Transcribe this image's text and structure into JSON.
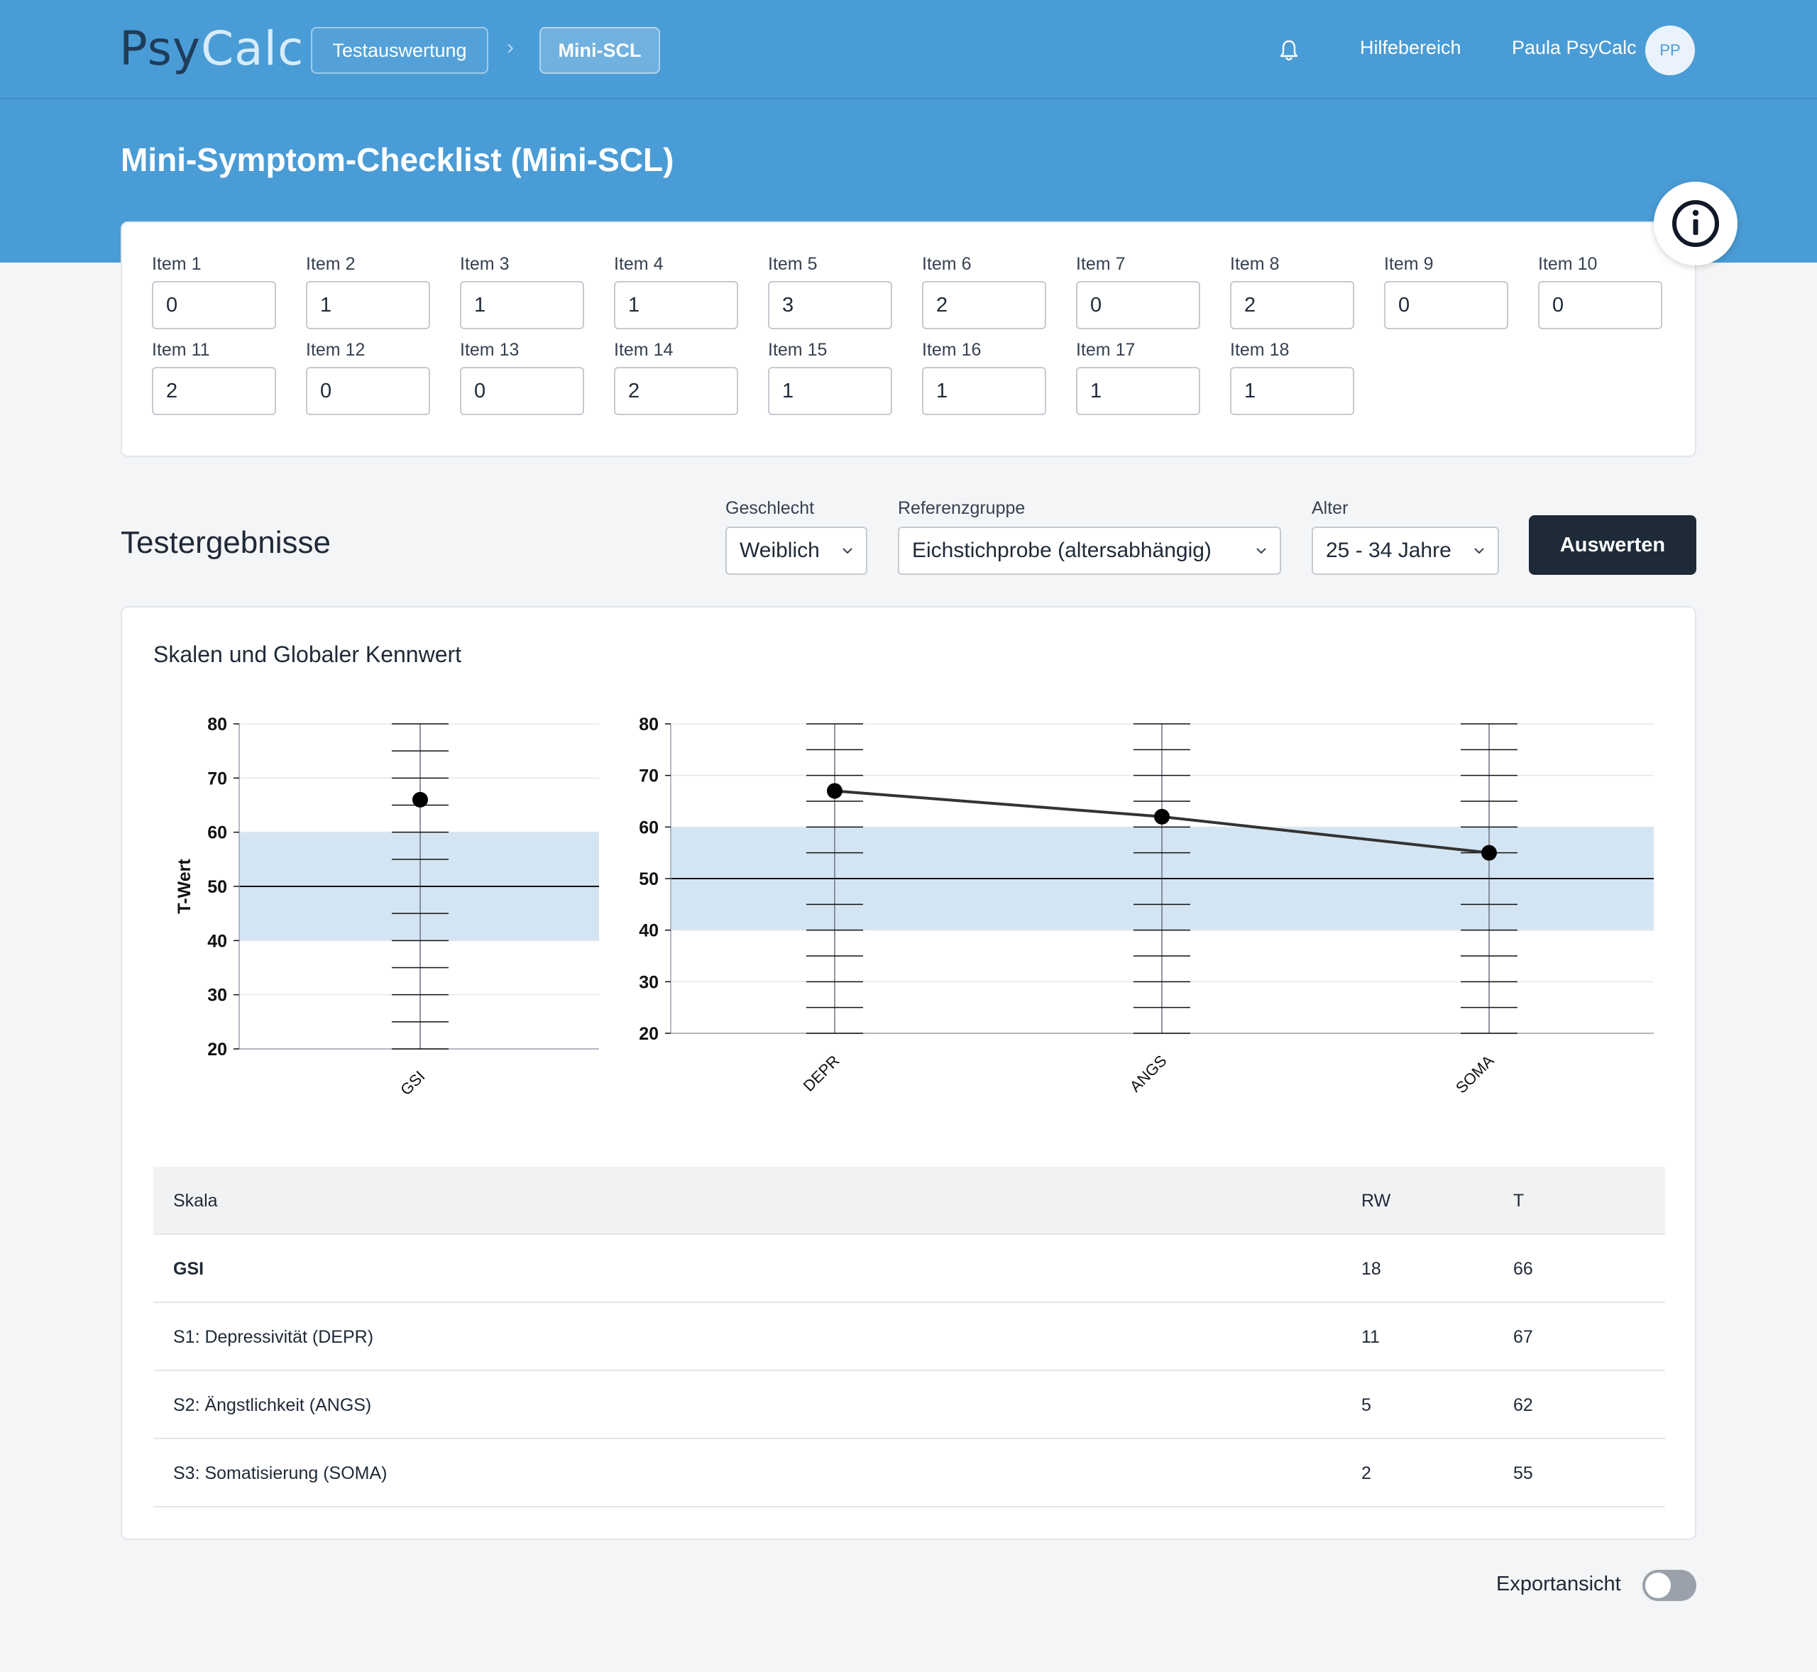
{
  "app": {
    "logo_part1": "Psy",
    "logo_part2": "Calc",
    "breadcrumb": [
      "Testauswertung",
      "Mini-SCL"
    ],
    "help_label": "Hilfebereich",
    "user_name": "Paula PsyCalc",
    "user_initials": "PP",
    "accent_color": "#4a9cd6"
  },
  "page": {
    "title": "Mini-Symptom-Checklist (Mini-SCL)"
  },
  "items": [
    {
      "label": "Item 1",
      "value": "0"
    },
    {
      "label": "Item 2",
      "value": "1"
    },
    {
      "label": "Item 3",
      "value": "1"
    },
    {
      "label": "Item 4",
      "value": "1"
    },
    {
      "label": "Item 5",
      "value": "3"
    },
    {
      "label": "Item 6",
      "value": "2"
    },
    {
      "label": "Item 7",
      "value": "0"
    },
    {
      "label": "Item 8",
      "value": "2"
    },
    {
      "label": "Item 9",
      "value": "0"
    },
    {
      "label": "Item 10",
      "value": "0"
    },
    {
      "label": "Item 11",
      "value": "2"
    },
    {
      "label": "Item 12",
      "value": "0"
    },
    {
      "label": "Item 13",
      "value": "0"
    },
    {
      "label": "Item 14",
      "value": "2"
    },
    {
      "label": "Item 15",
      "value": "1"
    },
    {
      "label": "Item 16",
      "value": "1"
    },
    {
      "label": "Item 17",
      "value": "1"
    },
    {
      "label": "Item 18",
      "value": "1"
    }
  ],
  "results": {
    "title": "Testergebnisse",
    "gender_label": "Geschlecht",
    "gender_value": "Weiblich",
    "reference_label": "Referenzgruppe",
    "reference_value": "Eichstichprobe (altersabhängig)",
    "age_label": "Alter",
    "age_value": "25 - 34 Jahre",
    "evaluate_button": "Auswerten"
  },
  "chart_card": {
    "title": "Skalen und Globaler Kennwert"
  },
  "chart_data": [
    {
      "type": "line",
      "categories": [
        "GSI"
      ],
      "values": [
        66
      ],
      "ylabel": "T-Wert",
      "ylim": [
        20,
        80
      ],
      "yticks": [
        20,
        30,
        40,
        50,
        60,
        70,
        80
      ],
      "reference_band": [
        40,
        60
      ],
      "reference_line": 50,
      "band_color": "#d3e5f3"
    },
    {
      "type": "line",
      "categories": [
        "DEPR",
        "ANGS",
        "SOMA"
      ],
      "values": [
        67,
        62,
        55
      ],
      "ylim": [
        20,
        80
      ],
      "yticks": [
        20,
        30,
        40,
        50,
        60,
        70,
        80
      ],
      "reference_band": [
        40,
        60
      ],
      "reference_line": 50,
      "band_color": "#d3e5f3"
    }
  ],
  "table": {
    "headers": [
      "Skala",
      "RW",
      "T"
    ],
    "rows": [
      {
        "skala": "GSI",
        "rw": "18",
        "t": "66"
      },
      {
        "skala": "S1: Depressivität (DEPR)",
        "rw": "11",
        "t": "67"
      },
      {
        "skala": "S2: Ängstlichkeit (ANGS)",
        "rw": "5",
        "t": "62"
      },
      {
        "skala": "S3: Somatisierung (SOMA)",
        "rw": "2",
        "t": "55"
      }
    ]
  },
  "export": {
    "label": "Exportansicht",
    "enabled": false
  }
}
